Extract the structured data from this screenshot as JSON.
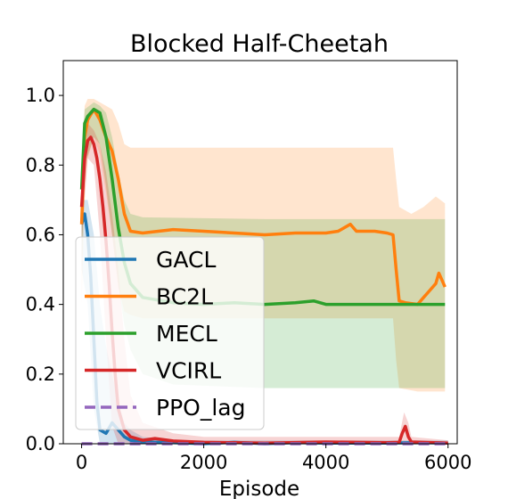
{
  "chart_data": {
    "type": "line",
    "title": "Blocked Half-Cheetah",
    "xlabel": "Episode",
    "ylabel": "",
    "xlim": [
      -300,
      6150
    ],
    "ylim": [
      0,
      1.1
    ],
    "xticks": [
      0,
      2000,
      4000,
      6000
    ],
    "xtick_labels": [
      "0",
      "2000",
      "4000",
      "6000"
    ],
    "yticks": [
      0.0,
      0.2,
      0.4,
      0.6,
      0.8,
      1.0
    ],
    "ytick_labels": [
      "0.0",
      "0.2",
      "0.4",
      "0.6",
      "0.8",
      "1.0"
    ],
    "grid": false,
    "legend_position": "center-left",
    "series": [
      {
        "name": "GACL",
        "color": "#1f77b4",
        "style": "solid",
        "points": [
          [
            0,
            0.63
          ],
          [
            50,
            0.66
          ],
          [
            100,
            0.6
          ],
          [
            150,
            0.48
          ],
          [
            200,
            0.3
          ],
          [
            250,
            0.12
          ],
          [
            300,
            0.04
          ],
          [
            400,
            0.03
          ],
          [
            500,
            0.06
          ],
          [
            600,
            0.04
          ],
          [
            700,
            0.02
          ],
          [
            800,
            0.01
          ],
          [
            1000,
            0.005
          ],
          [
            1500,
            0.003
          ],
          [
            2000,
            0.0
          ],
          [
            2500,
            0.004
          ],
          [
            3000,
            0.0
          ],
          [
            3500,
            0.003
          ],
          [
            4000,
            0.002
          ],
          [
            4500,
            0.002
          ],
          [
            5000,
            0.002
          ],
          [
            5500,
            0.003
          ],
          [
            6000,
            0.002
          ]
        ],
        "band_upper": [
          [
            0,
            0.7
          ],
          [
            100,
            0.7
          ],
          [
            200,
            0.6
          ],
          [
            300,
            0.4
          ],
          [
            400,
            0.28
          ],
          [
            500,
            0.2
          ],
          [
            600,
            0.12
          ],
          [
            700,
            0.06
          ],
          [
            800,
            0.04
          ],
          [
            1000,
            0.02
          ],
          [
            1500,
            0.01
          ],
          [
            6000,
            0.01
          ]
        ],
        "band_lower": [
          [
            0,
            0.5
          ],
          [
            100,
            0.4
          ],
          [
            200,
            0.1
          ],
          [
            300,
            0.0
          ],
          [
            6000,
            0.0
          ]
        ]
      },
      {
        "name": "BC2L",
        "color": "#ff7f0e",
        "style": "solid",
        "points": [
          [
            0,
            0.63
          ],
          [
            50,
            0.88
          ],
          [
            100,
            0.93
          ],
          [
            200,
            0.96
          ],
          [
            300,
            0.93
          ],
          [
            400,
            0.88
          ],
          [
            500,
            0.84
          ],
          [
            600,
            0.76
          ],
          [
            700,
            0.66
          ],
          [
            800,
            0.61
          ],
          [
            1000,
            0.605
          ],
          [
            1500,
            0.615
          ],
          [
            2000,
            0.61
          ],
          [
            2500,
            0.605
          ],
          [
            3000,
            0.6
          ],
          [
            3500,
            0.605
          ],
          [
            4000,
            0.605
          ],
          [
            4200,
            0.61
          ],
          [
            4400,
            0.63
          ],
          [
            4500,
            0.61
          ],
          [
            4800,
            0.61
          ],
          [
            5000,
            0.605
          ],
          [
            5100,
            0.6
          ],
          [
            5150,
            0.5
          ],
          [
            5200,
            0.41
          ],
          [
            5300,
            0.405
          ],
          [
            5500,
            0.4
          ],
          [
            5600,
            0.42
          ],
          [
            5700,
            0.44
          ],
          [
            5800,
            0.46
          ],
          [
            5850,
            0.49
          ],
          [
            5900,
            0.47
          ],
          [
            5950,
            0.45
          ]
        ],
        "band_upper": [
          [
            0,
            0.8
          ],
          [
            50,
            0.97
          ],
          [
            100,
            0.99
          ],
          [
            200,
            0.99
          ],
          [
            300,
            0.98
          ],
          [
            400,
            0.97
          ],
          [
            500,
            0.96
          ],
          [
            600,
            0.92
          ],
          [
            700,
            0.86
          ],
          [
            800,
            0.85
          ],
          [
            1000,
            0.85
          ],
          [
            2000,
            0.85
          ],
          [
            3000,
            0.85
          ],
          [
            4000,
            0.85
          ],
          [
            5100,
            0.85
          ],
          [
            5150,
            0.76
          ],
          [
            5200,
            0.68
          ],
          [
            5400,
            0.66
          ],
          [
            5600,
            0.68
          ],
          [
            5800,
            0.71
          ],
          [
            5950,
            0.69
          ]
        ],
        "band_lower": [
          [
            0,
            0.4
          ],
          [
            50,
            0.72
          ],
          [
            100,
            0.82
          ],
          [
            200,
            0.88
          ],
          [
            300,
            0.83
          ],
          [
            400,
            0.72
          ],
          [
            500,
            0.6
          ],
          [
            600,
            0.45
          ],
          [
            700,
            0.38
          ],
          [
            800,
            0.37
          ],
          [
            1000,
            0.36
          ],
          [
            2000,
            0.36
          ],
          [
            3000,
            0.36
          ],
          [
            4000,
            0.36
          ],
          [
            5100,
            0.36
          ],
          [
            5150,
            0.24
          ],
          [
            5200,
            0.16
          ],
          [
            5500,
            0.15
          ],
          [
            5950,
            0.15
          ]
        ]
      },
      {
        "name": "MECL",
        "color": "#2ca02c",
        "style": "solid",
        "points": [
          [
            0,
            0.73
          ],
          [
            50,
            0.92
          ],
          [
            100,
            0.94
          ],
          [
            200,
            0.96
          ],
          [
            300,
            0.95
          ],
          [
            400,
            0.88
          ],
          [
            500,
            0.76
          ],
          [
            600,
            0.62
          ],
          [
            700,
            0.52
          ],
          [
            800,
            0.46
          ],
          [
            1000,
            0.42
          ],
          [
            1500,
            0.405
          ],
          [
            2000,
            0.4
          ],
          [
            2500,
            0.405
          ],
          [
            3000,
            0.4
          ],
          [
            3500,
            0.405
          ],
          [
            3800,
            0.41
          ],
          [
            4000,
            0.4
          ],
          [
            4500,
            0.4
          ],
          [
            5000,
            0.4
          ],
          [
            5500,
            0.4
          ],
          [
            5950,
            0.4
          ]
        ],
        "band_upper": [
          [
            0,
            0.82
          ],
          [
            50,
            0.96
          ],
          [
            200,
            0.98
          ],
          [
            300,
            0.97
          ],
          [
            400,
            0.95
          ],
          [
            500,
            0.88
          ],
          [
            600,
            0.78
          ],
          [
            700,
            0.7
          ],
          [
            800,
            0.66
          ],
          [
            1000,
            0.65
          ],
          [
            3000,
            0.645
          ],
          [
            5950,
            0.645
          ]
        ],
        "band_lower": [
          [
            0,
            0.5
          ],
          [
            50,
            0.8
          ],
          [
            200,
            0.88
          ],
          [
            300,
            0.86
          ],
          [
            400,
            0.74
          ],
          [
            500,
            0.6
          ],
          [
            600,
            0.46
          ],
          [
            700,
            0.34
          ],
          [
            800,
            0.27
          ],
          [
            1000,
            0.2
          ],
          [
            1500,
            0.17
          ],
          [
            3000,
            0.16
          ],
          [
            5950,
            0.16
          ]
        ]
      },
      {
        "name": "VCIRL",
        "color": "#d62728",
        "style": "solid",
        "points": [
          [
            0,
            0.68
          ],
          [
            50,
            0.82
          ],
          [
            100,
            0.87
          ],
          [
            150,
            0.88
          ],
          [
            200,
            0.86
          ],
          [
            250,
            0.82
          ],
          [
            300,
            0.76
          ],
          [
            350,
            0.68
          ],
          [
            400,
            0.58
          ],
          [
            450,
            0.46
          ],
          [
            500,
            0.32
          ],
          [
            550,
            0.2
          ],
          [
            600,
            0.1
          ],
          [
            700,
            0.04
          ],
          [
            800,
            0.02
          ],
          [
            1000,
            0.01
          ],
          [
            1200,
            0.015
          ],
          [
            1500,
            0.008
          ],
          [
            2000,
            0.004
          ],
          [
            2500,
            0.003
          ],
          [
            3000,
            0.002
          ],
          [
            4000,
            0.005
          ],
          [
            5000,
            0.003
          ],
          [
            5200,
            0.004
          ],
          [
            5250,
            0.03
          ],
          [
            5300,
            0.05
          ],
          [
            5350,
            0.02
          ],
          [
            5400,
            0.005
          ],
          [
            6000,
            0.002
          ]
        ],
        "band_upper": [
          [
            0,
            0.78
          ],
          [
            100,
            0.92
          ],
          [
            200,
            0.9
          ],
          [
            300,
            0.86
          ],
          [
            400,
            0.78
          ],
          [
            500,
            0.66
          ],
          [
            600,
            0.5
          ],
          [
            700,
            0.3
          ],
          [
            800,
            0.14
          ],
          [
            1000,
            0.06
          ],
          [
            1500,
            0.03
          ],
          [
            2000,
            0.02
          ],
          [
            5200,
            0.02
          ],
          [
            5280,
            0.09
          ],
          [
            5350,
            0.06
          ],
          [
            5400,
            0.02
          ],
          [
            6000,
            0.01
          ]
        ],
        "band_lower": [
          [
            0,
            0.58
          ],
          [
            100,
            0.82
          ],
          [
            200,
            0.8
          ],
          [
            300,
            0.6
          ],
          [
            400,
            0.3
          ],
          [
            500,
            0.05
          ],
          [
            600,
            0.0
          ],
          [
            6000,
            0.0
          ]
        ]
      },
      {
        "name": "PPO_lag",
        "color": "#9467bd",
        "style": "dashed",
        "points": [
          [
            0,
            0.0
          ],
          [
            6000,
            0.0
          ]
        ]
      }
    ]
  }
}
